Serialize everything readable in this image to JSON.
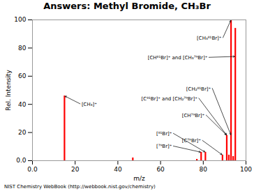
{
  "chart_data": {
    "type": "bar",
    "title": "Answers: Methyl Bromide, CH₃Br",
    "xlabel": "m/z",
    "ylabel": "Rel. Intensity",
    "x": [
      15,
      47,
      79,
      81,
      93,
      94,
      95,
      77,
      91,
      89,
      92
    ],
    "values": [
      46,
      2,
      6,
      6,
      100,
      3,
      94,
      1,
      18,
      4,
      4
    ],
    "color": "#ff0000",
    "xlim": [
      0.0,
      100
    ],
    "ylim": [
      0.0,
      100
    ],
    "xticks": [
      {
        "value": 0.0,
        "label": "0.0"
      },
      20,
      40,
      60,
      80,
      100
    ],
    "yticks": [
      {
        "value": 0.0,
        "label": "0.0"
      },
      20,
      40,
      60,
      80,
      100
    ],
    "grid": false,
    "annotations": [
      {
        "text": "[CH₃⁸¹Br]⁺",
        "x": 93,
        "y": 100,
        "text_x": 77,
        "text_y": 86
      },
      {
        "text": "[CH⁸¹Br]⁺ and [CH₃⁷⁹Br]⁺",
        "x": 95,
        "y": 74,
        "text_x": 54,
        "text_y": 72
      },
      {
        "text": "[CH₂⁸¹Br]⁺",
        "x": 93,
        "y": 18,
        "text_x": 72,
        "text_y": 50
      },
      {
        "text": "[C⁸¹Br]⁺ and [CH₂⁷⁹Br]⁺",
        "x": 91,
        "y": 18,
        "text_x": 51,
        "text_y": 43
      },
      {
        "text": "[CH⁷⁹Br]⁺",
        "x": 91,
        "y": 18,
        "text_x": 70,
        "text_y": 31
      },
      {
        "text": "[⁸¹Br]⁺",
        "x": 81,
        "y": 6,
        "text_x": 58,
        "text_y": 18
      },
      {
        "text": "[C⁷⁹Br]⁺",
        "x": 89,
        "y": 4,
        "text_x": 70,
        "text_y": 13
      },
      {
        "text": "[⁷⁹Br]⁺",
        "x": 79,
        "y": 6,
        "text_x": 58,
        "text_y": 9
      },
      {
        "text": "[CH₃]⁺",
        "x": 15,
        "y": 46,
        "text_x": 23,
        "text_y": 39
      }
    ],
    "caption": "NIST Chemistry WebBook (http://webbook.nist.gov/chemistry)"
  }
}
